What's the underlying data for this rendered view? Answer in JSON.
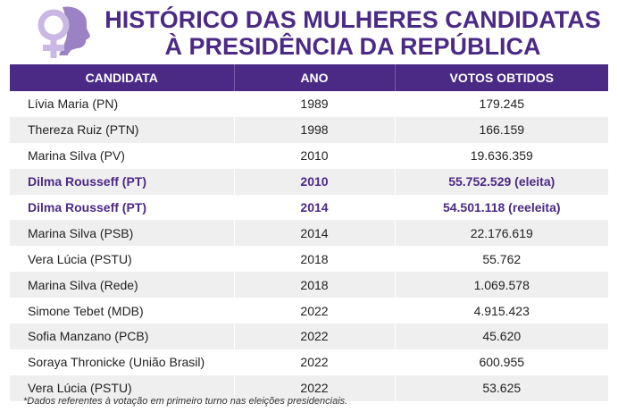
{
  "header": {
    "title_line1": "HISTÓRICO DAS MULHERES CANDIDATAS",
    "title_line2": "À PRESIDÊNCIA DA REPÚBLICA",
    "logo_icon": "female-symbol-profile-icon"
  },
  "colors": {
    "accent": "#4b2a85",
    "logo_light": "#c9b8e3",
    "logo_dark": "#9a82c4",
    "row_stripe": "#efefef"
  },
  "table": {
    "columns": [
      "CANDIDATA",
      "ANO",
      "VOTOS OBTIDOS"
    ],
    "rows": [
      {
        "candidata": "Lívia Maria (PN)",
        "ano": "1989",
        "votos": "179.245"
      },
      {
        "candidata": "Thereza Ruiz (PTN)",
        "ano": "1998",
        "votos": "166.159"
      },
      {
        "candidata": "Marina Silva (PV)",
        "ano": "2010",
        "votos": "19.636.359"
      },
      {
        "candidata": "Dilma Rousseff (PT)",
        "ano": "2010",
        "votos": "55.752.529 (eleita)"
      },
      {
        "candidata": "Dilma Rousseff (PT)",
        "ano": "2014",
        "votos": "54.501.118 (reeleita)"
      },
      {
        "candidata": "Marina Silva (PSB)",
        "ano": "2014",
        "votos": "22.176.619"
      },
      {
        "candidata": "Vera Lúcia (PSTU)",
        "ano": "2018",
        "votos": "55.762"
      },
      {
        "candidata": "Marina Silva (Rede)",
        "ano": "2018",
        "votos": "1.069.578"
      },
      {
        "candidata": "Simone Tebet (MDB)",
        "ano": "2022",
        "votos": "4.915.423"
      },
      {
        "candidata": "Sofia Manzano (PCB)",
        "ano": "2022",
        "votos": "45.620"
      },
      {
        "candidata": "Soraya Thronicke (União Brasil)",
        "ano": "2022",
        "votos": "600.955"
      },
      {
        "candidata": "Vera Lúcia (PSTU)",
        "ano": "2022",
        "votos": "53.625"
      }
    ]
  },
  "footnote": "*Dados referentes à votação em primeiro turno nas eleições presidenciais."
}
